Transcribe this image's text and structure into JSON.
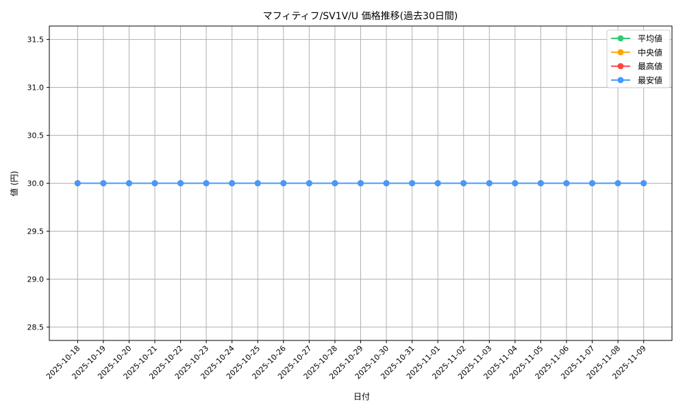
{
  "chart_data": {
    "type": "line",
    "title": "マフィティフ/SV1V/U 価格推移(過去30日間)",
    "xlabel": "日付",
    "ylabel": "値 (円)",
    "categories": [
      "2025-10-18",
      "2025-10-19",
      "2025-10-20",
      "2025-10-21",
      "2025-10-22",
      "2025-10-23",
      "2025-10-24",
      "2025-10-25",
      "2025-10-26",
      "2025-10-27",
      "2025-10-28",
      "2025-10-29",
      "2025-10-30",
      "2025-10-31",
      "2025-11-01",
      "2025-11-02",
      "2025-11-03",
      "2025-11-04",
      "2025-11-05",
      "2025-11-06",
      "2025-11-07",
      "2025-11-08",
      "2025-11-09"
    ],
    "ylim": [
      28.36,
      31.64
    ],
    "yticks": [
      "28.5",
      "29.0",
      "29.5",
      "30.0",
      "30.5",
      "31.0",
      "31.5"
    ],
    "grid": true,
    "legend_position": "top-right",
    "series": [
      {
        "name": "平均値",
        "color": "#2ecc71",
        "values": [
          30,
          30,
          30,
          30,
          30,
          30,
          30,
          30,
          30,
          30,
          30,
          30,
          30,
          30,
          30,
          30,
          30,
          30,
          30,
          30,
          30,
          30,
          30
        ]
      },
      {
        "name": " 中央値",
        "color": "#ffa500",
        "values": [
          30,
          30,
          30,
          30,
          30,
          30,
          30,
          30,
          30,
          30,
          30,
          30,
          30,
          30,
          30,
          30,
          30,
          30,
          30,
          30,
          30,
          30,
          30
        ]
      },
      {
        "name": "最高値",
        "color": "#ff4444",
        "values": [
          30,
          30,
          30,
          30,
          30,
          30,
          30,
          30,
          30,
          30,
          30,
          30,
          30,
          30,
          30,
          30,
          30,
          30,
          30,
          30,
          30,
          30,
          30
        ]
      },
      {
        "name": "最安値",
        "color": "#4499ff",
        "values": [
          30,
          30,
          30,
          30,
          30,
          30,
          30,
          30,
          30,
          30,
          30,
          30,
          30,
          30,
          30,
          30,
          30,
          30,
          30,
          30,
          30,
          30,
          30
        ]
      }
    ]
  }
}
